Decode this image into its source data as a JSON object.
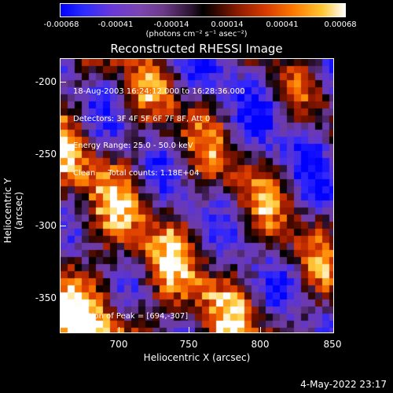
{
  "colorbar": {
    "ticks": [
      "-0.00068",
      "-0.00041",
      "-0.00014",
      "0.00014",
      "0.00041",
      "0.00068"
    ],
    "unit_label": "(photons cm⁻² s⁻¹ asec⁻²)"
  },
  "title": "Reconstructed RHESSI Image",
  "overlay": {
    "line1": "18-Aug-2003 16:24:12.000 to 16:28:36.000",
    "line2": "Detectors: 3F 4F 5F 6F 7F 8F, Att 0",
    "line3": "Energy Range: 25.0 - 50.0 keV",
    "line4": "Clean     Total counts: 1.18E+04",
    "peak": "Position of Peak = [694,-307]"
  },
  "axes": {
    "xlabel": "Heliocentric X (arcsec)",
    "ylabel": "Heliocentric Y (arcsec)",
    "xticks": [
      "700",
      "750",
      "800",
      "850"
    ],
    "yticks": [
      "-200",
      "-250",
      "-300",
      "-350"
    ]
  },
  "timestamp": "4-May-2022 23:17"
}
